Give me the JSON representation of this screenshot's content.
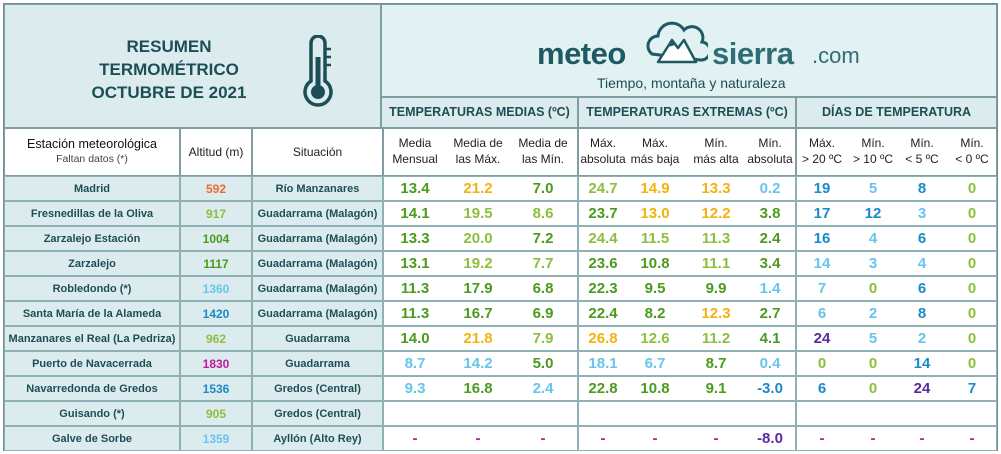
{
  "title": {
    "line1": "RESUMEN",
    "line2": "TERMOMÉTRICO",
    "line3": "OCTUBRE DE 2021"
  },
  "logo": {
    "meteo": "meteo",
    "sierra": "sierra",
    "com": ".com",
    "tagline": "Tiempo, montaña y naturaleza"
  },
  "groups": {
    "medias": "TEMPERATURAS MEDIAS (ºC)",
    "extremas": "TEMPERATURAS EXTREMAS (ºC)",
    "dias": "DÍAS DE TEMPERATURA"
  },
  "headers": {
    "estacion": "Estación meteorológica",
    "faltan": "Faltan datos (*)",
    "altitud": "Altitud (m)",
    "situacion": "Situación",
    "media_mensual": [
      "Media",
      "Mensual"
    ],
    "media_max": [
      "Media de",
      "las Máx."
    ],
    "media_min": [
      "Media de",
      "las Mín."
    ],
    "max_abs": [
      "Máx.",
      "absoluta"
    ],
    "max_baja": [
      "Máx.",
      "más baja"
    ],
    "min_alta": [
      "Mín.",
      "más alta"
    ],
    "min_abs": [
      "Mín.",
      "absoluta"
    ],
    "d_max20": [
      "Máx.",
      "> 20 ºC"
    ],
    "d_min10": [
      "Mín.",
      "> 10 ºC"
    ],
    "d_min5": [
      "Mín.",
      "< 5 ºC"
    ],
    "d_min0": [
      "Mín.",
      "< 0 ºC"
    ]
  },
  "colors": {
    "green": "#4b9a1e",
    "lgreen": "#8cbf3e",
    "yellow": "#f2b20f",
    "lblue": "#66c5ec",
    "blue": "#1b8bc8",
    "purple": "#5a2aa0",
    "dark": "#1a1a1a",
    "magenta": "#c0189c",
    "orange": "#ee6a2e"
  },
  "rows": [
    {
      "name": "Madrid",
      "alt": "592",
      "altc": "orange",
      "sit": "Río Manzanares",
      "med": [
        [
          "13.4",
          "green"
        ],
        [
          "21.2",
          "yellow"
        ],
        [
          "7.0",
          "green"
        ]
      ],
      "ext": [
        [
          "24.7",
          "lgreen"
        ],
        [
          "14.9",
          "yellow"
        ],
        [
          "13.3",
          "yellow"
        ],
        [
          "0.2",
          "lblue"
        ]
      ],
      "dias": [
        [
          "19",
          "blue"
        ],
        [
          "5",
          "lblue"
        ],
        [
          "8",
          "blue"
        ],
        [
          "0",
          "lgreen"
        ]
      ]
    },
    {
      "name": "Fresnedillas de la Oliva",
      "alt": "917",
      "altc": "lgreen",
      "sit": "Guadarrama (Malagón)",
      "med": [
        [
          "14.1",
          "green"
        ],
        [
          "19.5",
          "lgreen"
        ],
        [
          "8.6",
          "lgreen"
        ]
      ],
      "ext": [
        [
          "23.7",
          "green"
        ],
        [
          "13.0",
          "yellow"
        ],
        [
          "12.2",
          "yellow"
        ],
        [
          "3.8",
          "green"
        ]
      ],
      "dias": [
        [
          "17",
          "blue"
        ],
        [
          "12",
          "blue"
        ],
        [
          "3",
          "lblue"
        ],
        [
          "0",
          "lgreen"
        ]
      ]
    },
    {
      "name": "Zarzalejo Estación",
      "alt": "1004",
      "altc": "green",
      "sit": "Guadarrama (Malagón)",
      "med": [
        [
          "13.3",
          "green"
        ],
        [
          "20.0",
          "lgreen"
        ],
        [
          "7.2",
          "green"
        ]
      ],
      "ext": [
        [
          "24.4",
          "lgreen"
        ],
        [
          "11.5",
          "lgreen"
        ],
        [
          "11.3",
          "lgreen"
        ],
        [
          "2.4",
          "green"
        ]
      ],
      "dias": [
        [
          "16",
          "blue"
        ],
        [
          "4",
          "lblue"
        ],
        [
          "6",
          "blue"
        ],
        [
          "0",
          "lgreen"
        ]
      ]
    },
    {
      "name": "Zarzalejo",
      "alt": "1117",
      "altc": "green",
      "sit": "Guadarrama (Malagón)",
      "med": [
        [
          "13.1",
          "green"
        ],
        [
          "19.2",
          "lgreen"
        ],
        [
          "7.7",
          "lgreen"
        ]
      ],
      "ext": [
        [
          "23.6",
          "green"
        ],
        [
          "10.8",
          "green"
        ],
        [
          "11.1",
          "lgreen"
        ],
        [
          "3.4",
          "green"
        ]
      ],
      "dias": [
        [
          "14",
          "lblue"
        ],
        [
          "3",
          "lblue"
        ],
        [
          "4",
          "lblue"
        ],
        [
          "0",
          "lgreen"
        ]
      ]
    },
    {
      "name": "Robledondo  (*)",
      "alt": "1360",
      "altc": "lblue",
      "sit": "Guadarrama (Malagón)",
      "med": [
        [
          "11.3",
          "green"
        ],
        [
          "17.9",
          "green"
        ],
        [
          "6.8",
          "green"
        ]
      ],
      "ext": [
        [
          "22.3",
          "green"
        ],
        [
          "9.5",
          "green"
        ],
        [
          "9.9",
          "green"
        ],
        [
          "1.4",
          "lblue"
        ]
      ],
      "dias": [
        [
          "7",
          "lblue"
        ],
        [
          "0",
          "lgreen"
        ],
        [
          "6",
          "blue"
        ],
        [
          "0",
          "lgreen"
        ]
      ]
    },
    {
      "name": "Santa María de la Alameda",
      "alt": "1420",
      "altc": "blue",
      "sit": "Guadarrama (Malagón)",
      "med": [
        [
          "11.3",
          "green"
        ],
        [
          "16.7",
          "green"
        ],
        [
          "6.9",
          "green"
        ]
      ],
      "ext": [
        [
          "22.4",
          "green"
        ],
        [
          "8.2",
          "green"
        ],
        [
          "12.3",
          "yellow"
        ],
        [
          "2.7",
          "green"
        ]
      ],
      "dias": [
        [
          "6",
          "lblue"
        ],
        [
          "2",
          "lblue"
        ],
        [
          "8",
          "blue"
        ],
        [
          "0",
          "lgreen"
        ]
      ]
    },
    {
      "name": "Manzanares el Real (La Pedriza)",
      "alt": "962",
      "altc": "lgreen",
      "sit": "Guadarrama",
      "med": [
        [
          "14.0",
          "green"
        ],
        [
          "21.8",
          "yellow"
        ],
        [
          "7.9",
          "lgreen"
        ]
      ],
      "ext": [
        [
          "26.8",
          "yellow"
        ],
        [
          "12.6",
          "lgreen"
        ],
        [
          "11.2",
          "lgreen"
        ],
        [
          "4.1",
          "green"
        ]
      ],
      "dias": [
        [
          "24",
          "purple"
        ],
        [
          "5",
          "lblue"
        ],
        [
          "2",
          "lblue"
        ],
        [
          "0",
          "lgreen"
        ]
      ]
    },
    {
      "name": "Puerto de Navacerrada",
      "alt": "1830",
      "altc": "magenta",
      "sit": "Guadarrama",
      "med": [
        [
          "8.7",
          "lblue"
        ],
        [
          "14.2",
          "lblue"
        ],
        [
          "5.0",
          "green"
        ]
      ],
      "ext": [
        [
          "18.1",
          "lblue"
        ],
        [
          "6.7",
          "lblue"
        ],
        [
          "8.7",
          "green"
        ],
        [
          "0.4",
          "lblue"
        ]
      ],
      "dias": [
        [
          "0",
          "lgreen"
        ],
        [
          "0",
          "lgreen"
        ],
        [
          "14",
          "blue"
        ],
        [
          "0",
          "lgreen"
        ]
      ]
    },
    {
      "name": "Navarredonda de Gredos",
      "alt": "1536",
      "altc": "blue",
      "sit": "Gredos (Central)",
      "med": [
        [
          "9.3",
          "lblue"
        ],
        [
          "16.8",
          "green"
        ],
        [
          "2.4",
          "lblue"
        ]
      ],
      "ext": [
        [
          "22.8",
          "green"
        ],
        [
          "10.8",
          "green"
        ],
        [
          "9.1",
          "green"
        ],
        [
          "-3.0",
          "blue"
        ]
      ],
      "dias": [
        [
          "6",
          "blue"
        ],
        [
          "0",
          "lgreen"
        ],
        [
          "24",
          "purple"
        ],
        [
          "7",
          "blue"
        ]
      ]
    },
    {
      "name": "Guisando (*)",
      "alt": "905",
      "altc": "lgreen",
      "sit": "Gredos (Central)",
      "med": [
        [
          "",
          ""
        ],
        [
          "",
          ""
        ],
        [
          "",
          ""
        ]
      ],
      "ext": [
        [
          "",
          ""
        ],
        [
          "",
          ""
        ],
        [
          "",
          ""
        ],
        [
          "",
          ""
        ]
      ],
      "dias": [
        [
          "",
          ""
        ],
        [
          "",
          ""
        ],
        [
          "",
          ""
        ],
        [
          "",
          ""
        ]
      ]
    },
    {
      "name": "Galve de Sorbe",
      "alt": "1359",
      "altc": "lblue",
      "sit": "Ayllón (Alto Rey)",
      "med": [
        [
          "-",
          "magenta"
        ],
        [
          "-",
          "magenta"
        ],
        [
          "-",
          "magenta"
        ]
      ],
      "ext": [
        [
          "-",
          "magenta"
        ],
        [
          "-",
          "magenta"
        ],
        [
          "-",
          "magenta"
        ],
        [
          "-8.0",
          "purple"
        ]
      ],
      "dias": [
        [
          "-",
          "magenta"
        ],
        [
          "-",
          "magenta"
        ],
        [
          "-",
          "magenta"
        ],
        [
          "-",
          "magenta"
        ]
      ]
    }
  ]
}
